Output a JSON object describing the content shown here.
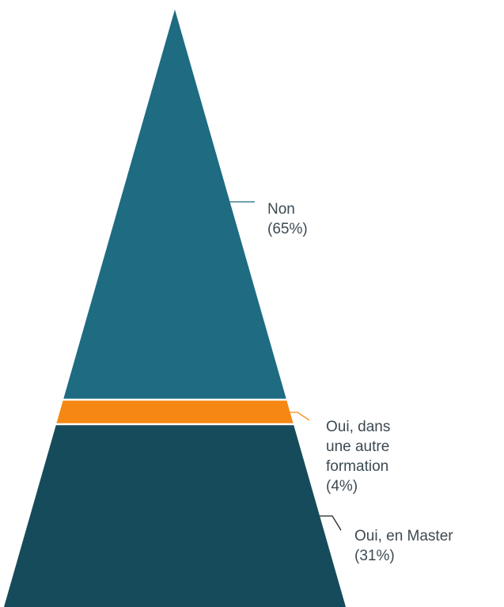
{
  "chart_data": {
    "type": "pyramid",
    "title": "",
    "segments": [
      {
        "label_lines": [
          "Non",
          "(65%)"
        ],
        "value": 65,
        "color": "#1e6b82"
      },
      {
        "label_lines": [
          "Oui, dans",
          "une autre",
          "formation",
          "(4%)"
        ],
        "value": 4,
        "color": "#f68712"
      },
      {
        "label_lines": [
          "Oui, en Master",
          "(31%)"
        ],
        "value": 31,
        "color": "#164b5b"
      }
    ],
    "leader_colors": [
      "#1e6b82",
      "#f68712",
      "#222222"
    ]
  }
}
